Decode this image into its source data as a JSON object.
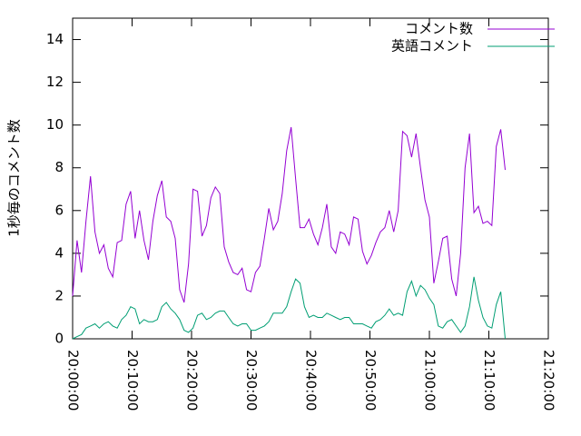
{
  "chart_data": {
    "type": "line",
    "ylabel": "1秒毎のコメント数",
    "x": [
      "20:00:00",
      "20:00:45",
      "20:01:30",
      "20:02:15",
      "20:03:00",
      "20:03:45",
      "20:04:30",
      "20:05:15",
      "20:06:00",
      "20:06:45",
      "20:07:30",
      "20:08:15",
      "20:09:00",
      "20:09:45",
      "20:10:30",
      "20:11:15",
      "20:12:00",
      "20:12:45",
      "20:13:30",
      "20:14:15",
      "20:15:00",
      "20:15:45",
      "20:16:30",
      "20:17:15",
      "20:18:00",
      "20:18:45",
      "20:19:30",
      "20:20:15",
      "20:21:00",
      "20:21:45",
      "20:22:30",
      "20:23:15",
      "20:24:00",
      "20:24:45",
      "20:25:30",
      "20:26:15",
      "20:27:00",
      "20:27:45",
      "20:28:30",
      "20:29:15",
      "20:30:00",
      "20:30:45",
      "20:31:30",
      "20:32:15",
      "20:33:00",
      "20:33:45",
      "20:34:30",
      "20:35:15",
      "20:36:00",
      "20:36:45",
      "20:37:30",
      "20:38:15",
      "20:39:00",
      "20:39:45",
      "20:40:30",
      "20:41:15",
      "20:42:00",
      "20:42:45",
      "20:43:30",
      "20:44:15",
      "20:45:00",
      "20:45:45",
      "20:46:30",
      "20:47:15",
      "20:48:00",
      "20:48:45",
      "20:49:30",
      "20:50:15",
      "20:51:00",
      "20:51:45",
      "20:52:30",
      "20:53:15",
      "20:54:00",
      "20:54:45",
      "20:55:30",
      "20:56:15",
      "20:57:00",
      "20:57:45",
      "20:58:30",
      "20:59:15",
      "21:00:00",
      "21:00:45",
      "21:01:30",
      "21:02:15",
      "21:03:00",
      "21:03:45",
      "21:04:30",
      "21:05:15",
      "21:06:00",
      "21:06:45",
      "21:07:30",
      "21:08:15",
      "21:09:00",
      "21:09:45",
      "21:10:30",
      "21:11:15",
      "21:12:00",
      "21:12:45"
    ],
    "series": [
      {
        "name": "コメント数",
        "color": "#9400d3",
        "values": [
          2.0,
          4.6,
          3.1,
          5.5,
          7.6,
          5.0,
          4.0,
          4.4,
          3.3,
          2.9,
          4.5,
          4.6,
          6.3,
          6.9,
          4.7,
          6.0,
          4.6,
          3.7,
          5.5,
          6.7,
          7.4,
          5.7,
          5.5,
          4.7,
          2.3,
          1.7,
          3.5,
          7.0,
          6.9,
          4.8,
          5.3,
          6.6,
          7.1,
          6.8,
          4.3,
          3.6,
          3.1,
          3.0,
          3.3,
          2.3,
          2.2,
          3.1,
          3.4,
          4.7,
          6.1,
          5.1,
          5.5,
          6.8,
          8.8,
          9.9,
          7.5,
          5.2,
          5.2,
          5.6,
          4.9,
          4.4,
          5.2,
          6.3,
          4.3,
          4.0,
          5.0,
          4.9,
          4.4,
          5.7,
          5.6,
          4.1,
          3.5,
          3.9,
          4.5,
          5.0,
          5.2,
          6.0,
          5.0,
          6.0,
          9.7,
          9.5,
          8.5,
          9.6,
          8.0,
          6.5,
          5.7,
          2.6,
          3.6,
          4.7,
          4.8,
          2.8,
          2.0,
          4.0,
          8.0,
          9.6,
          5.9,
          6.2,
          5.4,
          5.5,
          5.3,
          9.0,
          9.8,
          7.9
        ]
      },
      {
        "name": "英語コメント",
        "color": "#009e73",
        "values": [
          0.0,
          0.1,
          0.2,
          0.5,
          0.6,
          0.7,
          0.5,
          0.7,
          0.8,
          0.6,
          0.5,
          0.9,
          1.1,
          1.5,
          1.4,
          0.7,
          0.9,
          0.8,
          0.8,
          0.9,
          1.5,
          1.7,
          1.4,
          1.2,
          0.9,
          0.4,
          0.3,
          0.5,
          1.1,
          1.2,
          0.9,
          1.0,
          1.2,
          1.3,
          1.3,
          1.0,
          0.7,
          0.6,
          0.7,
          0.7,
          0.4,
          0.4,
          0.5,
          0.6,
          0.8,
          1.2,
          1.2,
          1.2,
          1.5,
          2.2,
          2.8,
          2.6,
          1.5,
          1.0,
          1.1,
          1.0,
          1.0,
          1.2,
          1.1,
          1.0,
          0.9,
          1.0,
          1.0,
          0.7,
          0.7,
          0.7,
          0.6,
          0.5,
          0.8,
          0.9,
          1.1,
          1.4,
          1.1,
          1.2,
          1.1,
          2.2,
          2.7,
          2.0,
          2.5,
          2.3,
          1.9,
          1.6,
          0.6,
          0.5,
          0.8,
          0.9,
          0.6,
          0.3,
          0.6,
          1.5,
          2.9,
          1.8,
          1.0,
          0.6,
          0.5,
          1.6,
          2.2,
          0.0
        ]
      }
    ],
    "xlim": [
      "20:00:00",
      "21:20:00"
    ],
    "xticks": [
      "20:00:00",
      "20:10:00",
      "20:20:00",
      "20:30:00",
      "20:40:00",
      "20:50:00",
      "21:00:00",
      "21:10:00",
      "21:20:00"
    ],
    "ylim": [
      0,
      15
    ],
    "yticks": [
      0,
      2,
      4,
      6,
      8,
      10,
      12,
      14
    ],
    "legend": "top-right"
  }
}
